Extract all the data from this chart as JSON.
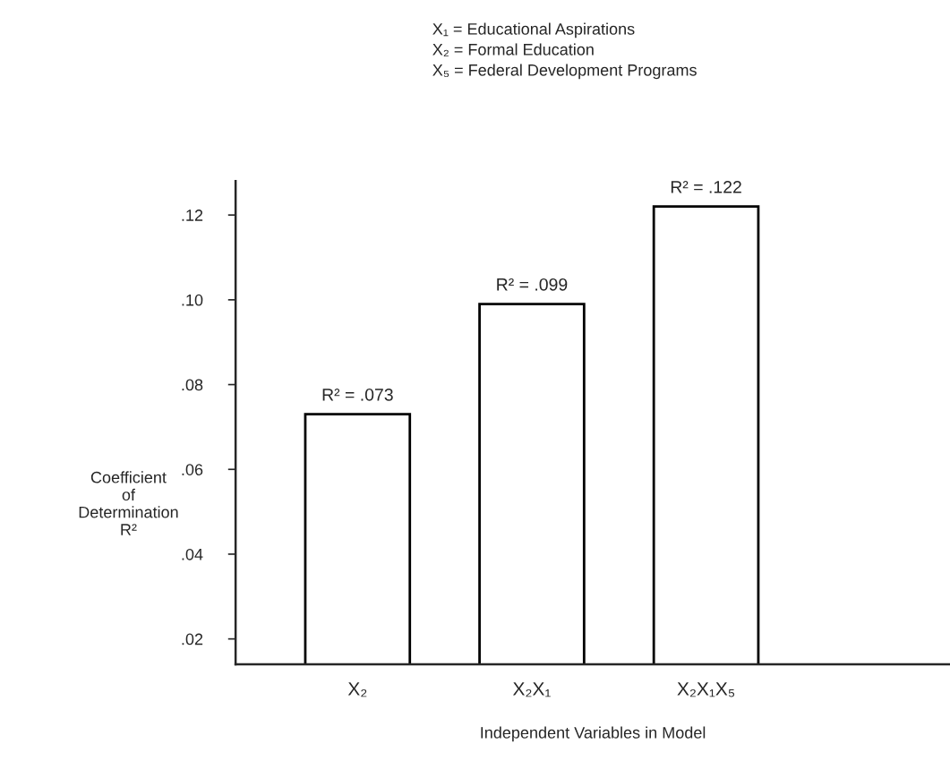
{
  "chart_data": {
    "type": "bar",
    "categories": [
      "X₂",
      "X₂X₁",
      "X₂X₁X₅"
    ],
    "values": [
      0.073,
      0.099,
      0.122
    ],
    "value_labels": [
      "R² = .073",
      "R² = .099",
      "R² = .122"
    ],
    "color": "#ffffff",
    "xlabel": "Independent Variables in Model",
    "ylabel": "Coefficient\nof\nDetermination\nR²",
    "ylim": [
      0.014,
      0.128
    ],
    "yticks": [
      {
        "value": 0.02,
        "label": ".02"
      },
      {
        "value": 0.04,
        "label": ".04"
      },
      {
        "value": 0.06,
        "label": ".06"
      },
      {
        "value": 0.08,
        "label": ".08"
      },
      {
        "value": 0.1,
        "label": ".10"
      },
      {
        "value": 0.12,
        "label": ".12"
      }
    ],
    "annotations": [
      "X₁ = Educational Aspirations",
      "X₂ = Formal Education",
      "X₅ = Federal Development Programs"
    ],
    "grid": false,
    "legend": false
  }
}
